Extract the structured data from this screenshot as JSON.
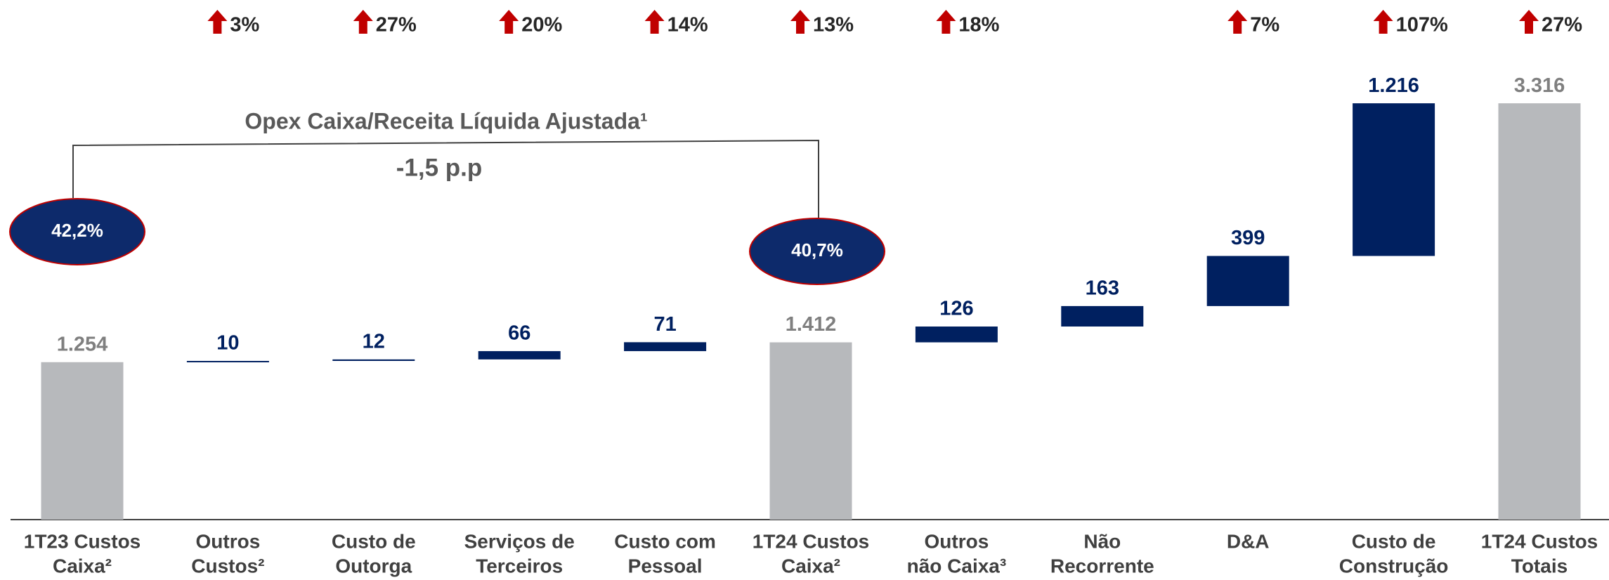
{
  "chart_data": {
    "type": "waterfall",
    "categories": [
      [
        "1T23 Custos",
        "Caixa²"
      ],
      [
        "Outros",
        "Custos²"
      ],
      [
        "Custo de",
        "Outorga"
      ],
      [
        "Serviços de",
        "Terceiros"
      ],
      [
        "Custo com",
        "Pessoal"
      ],
      [
        "1T24 Custos",
        "Caixa²"
      ],
      [
        "Outros",
        "não Caixa³"
      ],
      [
        "Não",
        "Recorrente"
      ],
      [
        "D&A"
      ],
      [
        "Custo de",
        "Construção"
      ],
      [
        "1T24 Custos",
        "Totais"
      ]
    ],
    "values": [
      1254,
      10,
      12,
      66,
      71,
      1412,
      126,
      163,
      399,
      1216,
      3316
    ],
    "value_labels": [
      "1.254",
      "10",
      "12",
      "66",
      "71",
      "1.412",
      "126",
      "163",
      "399",
      "1.216",
      "3.316"
    ],
    "measure": [
      "total",
      "relative",
      "relative",
      "relative",
      "relative",
      "total",
      "relative",
      "relative",
      "relative",
      "relative",
      "total"
    ],
    "colors": {
      "total": "#b7b9bc",
      "relative": "#002060"
    },
    "growth": [
      null,
      3,
      27,
      20,
      14,
      13,
      18,
      null,
      7,
      107,
      27
    ],
    "growth_labels": [
      null,
      "3%",
      "27%",
      "20%",
      "14%",
      "13%",
      "18%",
      null,
      "7%",
      "107%",
      "27%"
    ],
    "annotations": {
      "bracket_title": "Opex Caixa/Receita Líquida Ajustada¹",
      "difference": "-1,5 p.p",
      "ratios": [
        {
          "index": 0,
          "label": "42,2%"
        },
        {
          "index": 5,
          "label": "40,7%"
        }
      ]
    }
  }
}
